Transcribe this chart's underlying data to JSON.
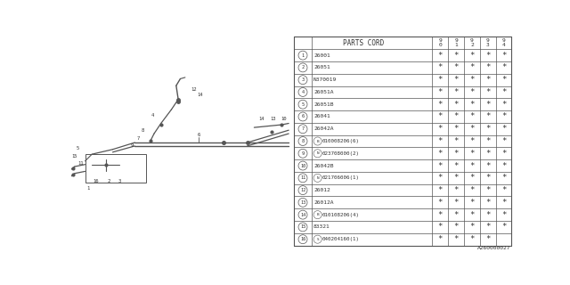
{
  "figure_code": "A260000027",
  "bg_color": "#ffffff",
  "rows": [
    [
      "1",
      "26001",
      "*",
      "*",
      "*",
      "*",
      "*"
    ],
    [
      "2",
      "26051",
      "*",
      "*",
      "*",
      "*",
      "*"
    ],
    [
      "3",
      "N370019",
      "*",
      "*",
      "*",
      "*",
      "*"
    ],
    [
      "4",
      "26051A",
      "*",
      "*",
      "*",
      "*",
      "*"
    ],
    [
      "5",
      "26051B",
      "*",
      "*",
      "*",
      "*",
      "*"
    ],
    [
      "6",
      "26041",
      "*",
      "*",
      "*",
      "*",
      "*"
    ],
    [
      "7",
      "26042A",
      "*",
      "*",
      "*",
      "*",
      "*"
    ],
    [
      "8",
      "B010008206(6)",
      "*",
      "*",
      "*",
      "*",
      "*"
    ],
    [
      "9",
      "N023708000(2)",
      "*",
      "*",
      "*",
      "*",
      "*"
    ],
    [
      "10",
      "26042B",
      "*",
      "*",
      "*",
      "*",
      "*"
    ],
    [
      "11",
      "N021706006(1)",
      "*",
      "*",
      "*",
      "*",
      "*"
    ],
    [
      "12",
      "26012",
      "*",
      "*",
      "*",
      "*",
      "*"
    ],
    [
      "13",
      "26012A",
      "*",
      "*",
      "*",
      "*",
      "*"
    ],
    [
      "14",
      "B010108206(4)",
      "*",
      "*",
      "*",
      "*",
      "*"
    ],
    [
      "15",
      "83321",
      "*",
      "*",
      "*",
      "*",
      "*"
    ],
    [
      "16",
      "S040204160(1)",
      "*",
      "*",
      "*",
      "*",
      ""
    ]
  ],
  "circled_B_rows": [
    8,
    14
  ],
  "circled_N_rows": [
    9,
    11
  ],
  "circled_S_rows": [
    16
  ],
  "years": [
    "9\n0",
    "9\n1",
    "9\n2",
    "9\n3",
    "9\n4"
  ]
}
